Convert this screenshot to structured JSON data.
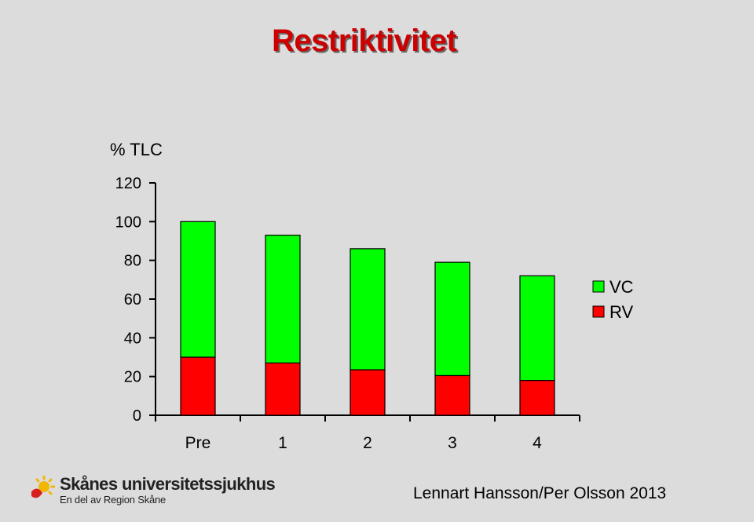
{
  "title": "Restriktivitet",
  "chart_data": {
    "type": "bar",
    "stacked": true,
    "ylabel": "% TLC",
    "categories": [
      "Pre",
      "1",
      "2",
      "3",
      "4"
    ],
    "series": [
      {
        "name": "RV",
        "color": "#ff0000",
        "values": [
          30,
          27,
          23.5,
          20.5,
          18
        ]
      },
      {
        "name": "VC",
        "color": "#00ff00",
        "values": [
          70,
          66,
          62.5,
          58.5,
          54
        ]
      }
    ],
    "ylim": [
      0,
      120
    ],
    "yticks": [
      0,
      20,
      40,
      60,
      80,
      100,
      120
    ],
    "grid": false,
    "legend": "right"
  },
  "footer": {
    "logo_name": "Skånes universitetssjukhus",
    "logo_sub": "En del av Region Skåne",
    "logo_icon": "sun-icon",
    "credit": "Lennart  Hansson/Per Olsson 2013"
  }
}
